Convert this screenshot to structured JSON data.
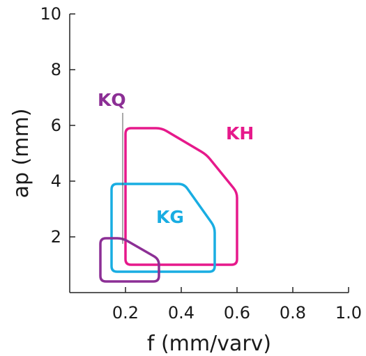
{
  "chart_data": {
    "type": "area",
    "xlabel": "f (mm/varv)",
    "ylabel": "ap (mm)",
    "xlim": [
      0,
      1.0
    ],
    "ylim": [
      0,
      10
    ],
    "xticks": [
      {
        "value": 0.2,
        "label": "0.2"
      },
      {
        "value": 0.4,
        "label": "0.4"
      },
      {
        "value": 0.6,
        "label": "0.6"
      },
      {
        "value": 0.8,
        "label": "0.8"
      },
      {
        "value": 1.0,
        "label": "1.0"
      }
    ],
    "yticks": [
      {
        "value": 2,
        "label": "2"
      },
      {
        "value": 4,
        "label": "4"
      },
      {
        "value": 6,
        "label": "6"
      },
      {
        "value": 8,
        "label": "8"
      },
      {
        "value": 10,
        "label": "10"
      }
    ],
    "grid": false,
    "series": [
      {
        "name": "KH",
        "color": "#e6198b",
        "points": [
          [
            0.2,
            1.0
          ],
          [
            0.2,
            5.9
          ],
          [
            0.33,
            5.9
          ],
          [
            0.49,
            4.95
          ],
          [
            0.6,
            3.6
          ],
          [
            0.6,
            1.0
          ]
        ],
        "label_at": [
          0.56,
          5.5
        ]
      },
      {
        "name": "KG",
        "color": "#19ade2",
        "points": [
          [
            0.15,
            0.75
          ],
          [
            0.15,
            3.9
          ],
          [
            0.41,
            3.9
          ],
          [
            0.52,
            2.35
          ],
          [
            0.52,
            0.75
          ]
        ],
        "label_at": [
          0.31,
          2.5
        ]
      },
      {
        "name": "KQ",
        "color": "#8c2f95",
        "points": [
          [
            0.11,
            0.4
          ],
          [
            0.11,
            1.95
          ],
          [
            0.19,
            1.95
          ],
          [
            0.32,
            1.2
          ],
          [
            0.32,
            0.4
          ]
        ],
        "label_at": [
          0.1,
          6.7
        ]
      }
    ]
  }
}
